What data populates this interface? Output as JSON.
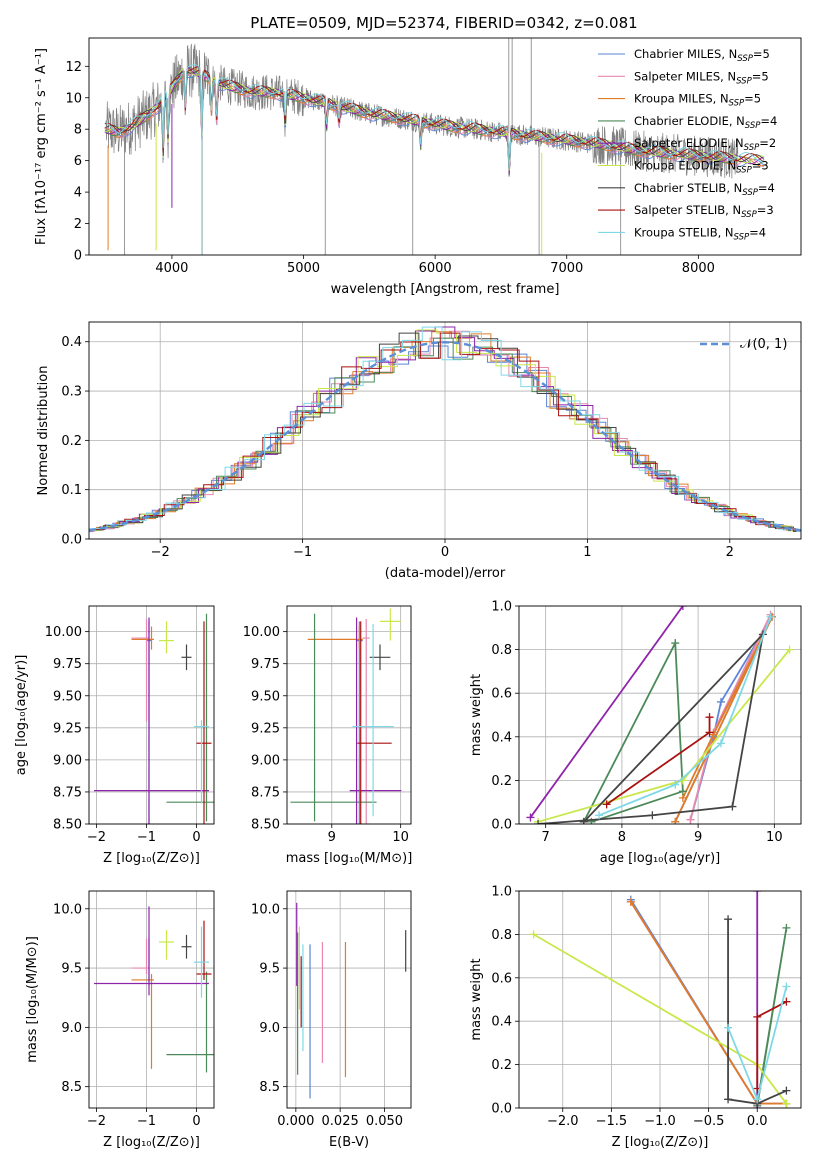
{
  "figure_title": "PLATE=0509, MJD=52374, FIBERID=0342, z=0.081",
  "colors": {
    "Chabrier MILES": "#5b85d6",
    "Salpeter MILES": "#e888b0",
    "Kroupa MILES": "#e07b28",
    "Chabrier ELODIE": "#4d8a5a",
    "Salpeter ELODIE": "#8e24aa",
    "Kroupa ELODIE": "#c8e84a",
    "Chabrier STELIB": "#444444",
    "Salpeter STELIB": "#aa1111",
    "Kroupa STELIB": "#7fd8e6",
    "data": "#808080"
  },
  "chart_data": [
    {
      "id": "spectrum",
      "type": "line",
      "xlabel": "wavelength [Angstrom, rest frame]",
      "ylabel": "Flux [fλ10⁻¹⁷ erg cm⁻² s⁻¹ A⁻¹]",
      "xlim": [
        3370,
        8780
      ],
      "ylim": [
        0,
        13.8
      ],
      "xticks": [
        4000,
        5000,
        6000,
        7000,
        8000
      ],
      "yticks": [
        0,
        2,
        4,
        6,
        8,
        10,
        12
      ],
      "grid": false,
      "legend_position": "top-right",
      "legend": [
        {
          "label": "Chabrier MILES, N",
          "sub": "SSP",
          "tail": "=5"
        },
        {
          "label": "Salpeter MILES, N",
          "sub": "SSP",
          "tail": "=5"
        },
        {
          "label": "Kroupa MILES, N",
          "sub": "SSP",
          "tail": "=5"
        },
        {
          "label": "Chabrier ELODIE, N",
          "sub": "SSP",
          "tail": "=4"
        },
        {
          "label": "Salpeter ELODIE, N",
          "sub": "SSP",
          "tail": "=2"
        },
        {
          "label": "Kroupa ELODIE, N",
          "sub": "SSP",
          "tail": "=3"
        },
        {
          "label": "Chabrier STELIB, N",
          "sub": "SSP",
          "tail": "=4"
        },
        {
          "label": "Salpeter STELIB, N",
          "sub": "SSP",
          "tail": "=3"
        },
        {
          "label": "Kroupa STELIB, N",
          "sub": "SSP",
          "tail": "=4"
        }
      ],
      "continuum": {
        "x": [
          3500,
          3600,
          3700,
          3800,
          3900,
          4000,
          4100,
          4200,
          4300,
          4400,
          4600,
          4800,
          5000,
          5200,
          5500,
          5800,
          6100,
          6400,
          6700,
          7000,
          7300,
          7500,
          7700,
          8000,
          8300,
          8500
        ],
        "y": [
          8.0,
          7.8,
          8.2,
          8.8,
          9.5,
          10.6,
          11.8,
          11.6,
          11.2,
          10.8,
          10.4,
          10.3,
          10.0,
          9.6,
          9.0,
          8.6,
          8.2,
          7.9,
          7.6,
          7.3,
          7.0,
          6.7,
          6.5,
          6.3,
          6.1,
          6.0
        ]
      },
      "model_range": [
        3490,
        8500
      ],
      "data_range": [
        3500,
        8300
      ]
    },
    {
      "id": "residual_hist",
      "type": "histogram",
      "xlabel": "(data-model)/error",
      "ylabel": "Normed distribution",
      "xlim": [
        -2.5,
        2.5
      ],
      "ylim": [
        0,
        0.44
      ],
      "xticks": [
        -2,
        -1,
        0,
        1,
        2
      ],
      "yticks": [
        0.0,
        0.1,
        0.2,
        0.3,
        0.4
      ],
      "grid": true,
      "reference": {
        "label": "𝒩(0, 1)",
        "mean": 0,
        "sigma": 1
      },
      "bins": 39
    },
    {
      "id": "age_vs_Z",
      "type": "errorbar",
      "xlabel": "Z [log₁₀(Z/Z⊙)]",
      "ylabel": "age  [log₁₀(age/yr)]",
      "xlim": [
        -2.15,
        0.35
      ],
      "ylim": [
        8.5,
        10.2
      ],
      "xticks": [
        -2,
        -1,
        0
      ],
      "yticks": [
        8.5,
        8.75,
        9.0,
        9.25,
        9.5,
        9.75,
        10.0
      ],
      "points": [
        {
          "model": "Chabrier MILES",
          "x": -0.95,
          "xerr": [
            0.05,
            0.05
          ],
          "y": 9.93,
          "yerr": [
            1.43,
            0.15
          ]
        },
        {
          "model": "Salpeter MILES",
          "x": -1.0,
          "xerr": [
            0.3,
            0.05
          ],
          "y": 9.95,
          "yerr": [
            0.65,
            0.15
          ]
        },
        {
          "model": "Kroupa MILES",
          "x": -0.9,
          "xerr": [
            0.4,
            0.05
          ],
          "y": 9.94,
          "yerr": [
            0.08,
            0.1
          ]
        },
        {
          "model": "Chabrier ELODIE",
          "x": 0.2,
          "xerr": [
            0.8,
            0.15
          ],
          "y": 8.67,
          "yerr": [
            0.15,
            1.47
          ]
        },
        {
          "model": "Salpeter ELODIE",
          "x": -0.95,
          "xerr": [
            1.1,
            1.2
          ],
          "y": 8.76,
          "yerr": [
            0.3,
            1.35
          ]
        },
        {
          "model": "Kroupa ELODIE",
          "x": -0.6,
          "xerr": [
            0.15,
            0.15
          ],
          "y": 9.93,
          "yerr": [
            0.1,
            0.15
          ]
        },
        {
          "model": "Chabrier STELIB",
          "x": -0.2,
          "xerr": [
            0.1,
            0.1
          ],
          "y": 9.8,
          "yerr": [
            0.1,
            0.1
          ]
        },
        {
          "model": "Salpeter STELIB",
          "x": 0.15,
          "xerr": [
            0.15,
            0.15
          ],
          "y": 9.13,
          "yerr": [
            0.7,
            0.95
          ]
        },
        {
          "model": "Kroupa STELIB",
          "x": 0.1,
          "xerr": [
            0.15,
            0.15
          ],
          "y": 9.26,
          "yerr": [
            0.6,
            0.05
          ]
        }
      ]
    },
    {
      "id": "age_vs_mass",
      "type": "errorbar",
      "xlabel": "mass [log₁₀(M/M⊙)]",
      "ylabel": "",
      "xlim": [
        8.35,
        10.15
      ],
      "ylim": [
        8.5,
        10.2
      ],
      "xticks": [
        9,
        10
      ],
      "yticks": [
        8.5,
        8.75,
        9.0,
        9.25,
        9.5,
        9.75,
        10.0
      ],
      "points": [
        {
          "model": "Chabrier MILES",
          "x": 9.4,
          "xerr": [
            0.05,
            0.05
          ],
          "y": 9.93,
          "yerr": [
            1.43,
            0.15
          ]
        },
        {
          "model": "Salpeter MILES",
          "x": 9.5,
          "xerr": [
            0.05,
            0.05
          ],
          "y": 9.95,
          "yerr": [
            1.45,
            0.15
          ]
        },
        {
          "model": "Kroupa MILES",
          "x": 9.4,
          "xerr": [
            0.75,
            0.05
          ],
          "y": 9.94,
          "yerr": [
            0.08,
            0.1
          ]
        },
        {
          "model": "Chabrier ELODIE",
          "x": 8.75,
          "xerr": [
            0.35,
            0.9
          ],
          "y": 8.67,
          "yerr": [
            0.15,
            1.47
          ]
        },
        {
          "model": "Salpeter ELODIE",
          "x": 9.36,
          "xerr": [
            0.1,
            0.65
          ],
          "y": 8.76,
          "yerr": [
            0.3,
            1.35
          ]
        },
        {
          "model": "Kroupa ELODIE",
          "x": 9.85,
          "xerr": [
            0.15,
            0.15
          ],
          "y": 10.08,
          "yerr": [
            0.15,
            0.1
          ]
        },
        {
          "model": "Chabrier STELIB",
          "x": 9.7,
          "xerr": [
            0.15,
            0.15
          ],
          "y": 9.8,
          "yerr": [
            0.1,
            0.1
          ]
        },
        {
          "model": "Salpeter STELIB",
          "x": 9.42,
          "xerr": [
            0.05,
            0.45
          ],
          "y": 9.13,
          "yerr": [
            0.7,
            0.95
          ]
        },
        {
          "model": "Kroupa STELIB",
          "x": 9.6,
          "xerr": [
            0.3,
            0.3
          ],
          "y": 9.26,
          "yerr": [
            0.7,
            0.8
          ]
        }
      ]
    },
    {
      "id": "weight_vs_age",
      "type": "line",
      "xlabel": "age  [log₁₀(age/yr)]",
      "ylabel": "mass weight",
      "xlim": [
        6.65,
        10.35
      ],
      "ylim": [
        0,
        1.0
      ],
      "xticks": [
        7,
        8,
        9,
        10
      ],
      "yticks": [
        0.0,
        0.2,
        0.4,
        0.6,
        0.8,
        1.0
      ],
      "grid": true,
      "series": [
        {
          "model": "Chabrier MILES",
          "x": [
            8.9,
            9.2,
            9.3,
            9.97,
            8.7
          ],
          "y": [
            0.02,
            0.4,
            0.56,
            0.95,
            0.01
          ]
        },
        {
          "model": "Salpeter MILES",
          "x": [
            8.9,
            9.2,
            9.95
          ],
          "y": [
            0.02,
            0.42,
            0.96
          ]
        },
        {
          "model": "Kroupa MILES",
          "x": [
            8.8,
            9.2,
            9.97,
            8.7
          ],
          "y": [
            0.12,
            0.41,
            0.95,
            0.01
          ]
        },
        {
          "model": "Chabrier ELODIE",
          "x": [
            7.5,
            8.7,
            8.8,
            7.6
          ],
          "y": [
            0.01,
            0.83,
            0.15,
            0.01
          ]
        },
        {
          "model": "Salpeter ELODIE",
          "x": [
            6.8,
            8.8
          ],
          "y": [
            0.03,
            1.0
          ]
        },
        {
          "model": "Kroupa ELODIE",
          "x": [
            6.9,
            8.8,
            10.2
          ],
          "y": [
            0.01,
            0.2,
            0.8
          ]
        },
        {
          "model": "Chabrier STELIB",
          "x": [
            6.9,
            8.4,
            9.45,
            9.85,
            7.5
          ],
          "y": [
            0.0,
            0.04,
            0.08,
            0.87,
            0.01
          ]
        },
        {
          "model": "Salpeter STELIB",
          "x": [
            7.8,
            9.15,
            9.15
          ],
          "y": [
            0.09,
            0.42,
            0.49
          ]
        },
        {
          "model": "Kroupa STELIB",
          "x": [
            7.7,
            8.7,
            9.3,
            9.95
          ],
          "y": [
            0.04,
            0.18,
            0.37,
            0.95
          ]
        }
      ]
    },
    {
      "id": "mass_vs_Z",
      "type": "errorbar",
      "xlabel": "Z [log₁₀(Z/Z⊙)]",
      "ylabel": "mass [log₁₀(M/M⊙)]",
      "xlim": [
        -2.15,
        0.35
      ],
      "ylim": [
        8.32,
        10.15
      ],
      "xticks": [
        -2,
        -1,
        0
      ],
      "yticks": [
        8.5,
        9.0,
        9.5,
        10.0
      ],
      "points": [
        {
          "model": "Chabrier MILES",
          "x": -0.95,
          "xerr": [
            0.05,
            0.05
          ],
          "y": 9.4,
          "yerr": [
            0.05,
            0.35
          ]
        },
        {
          "model": "Salpeter MILES",
          "x": -1.0,
          "xerr": [
            0.3,
            0.05
          ],
          "y": 9.5,
          "yerr": [
            0.05,
            0.25
          ]
        },
        {
          "model": "Kroupa MILES",
          "x": -0.9,
          "xerr": [
            0.4,
            0.05
          ],
          "y": 9.4,
          "yerr": [
            0.75,
            0.05
          ]
        },
        {
          "model": "Chabrier ELODIE",
          "x": 0.2,
          "xerr": [
            0.8,
            0.15
          ],
          "y": 8.77,
          "yerr": [
            0.15,
            0.7
          ]
        },
        {
          "model": "Salpeter ELODIE",
          "x": -0.95,
          "xerr": [
            1.1,
            1.2
          ],
          "y": 9.37,
          "yerr": [
            0.1,
            0.65
          ]
        },
        {
          "model": "Kroupa ELODIE",
          "x": -0.6,
          "xerr": [
            0.15,
            0.15
          ],
          "y": 9.72,
          "yerr": [
            0.15,
            0.1
          ]
        },
        {
          "model": "Chabrier STELIB",
          "x": -0.2,
          "xerr": [
            0.1,
            0.1
          ],
          "y": 9.68,
          "yerr": [
            0.1,
            0.1
          ]
        },
        {
          "model": "Salpeter STELIB",
          "x": 0.15,
          "xerr": [
            0.15,
            0.15
          ],
          "y": 9.45,
          "yerr": [
            0.05,
            0.45
          ]
        },
        {
          "model": "Kroupa STELIB",
          "x": 0.1,
          "xerr": [
            0.15,
            0.15
          ],
          "y": 9.55,
          "yerr": [
            0.3,
            0.3
          ]
        }
      ]
    },
    {
      "id": "mass_vs_ebv",
      "type": "errorbar",
      "xlabel": "E(B-V)",
      "ylabel": "",
      "xlim": [
        -0.005,
        0.065
      ],
      "ylim": [
        8.32,
        10.15
      ],
      "xticks": [
        0.0,
        0.025,
        0.05
      ],
      "yticks": [
        8.5,
        9.0,
        9.5,
        10.0
      ],
      "points": [
        {
          "model": "Chabrier MILES",
          "x": 0.008,
          "xerr": [
            0,
            0
          ],
          "y": 9.3,
          "yerr": [
            0.9,
            0.4
          ]
        },
        {
          "model": "Salpeter MILES",
          "x": 0.015,
          "xerr": [
            0,
            0
          ],
          "y": 9.3,
          "yerr": [
            0.6,
            0.42
          ]
        },
        {
          "model": "Kroupa MILES",
          "x": 0.028,
          "xerr": [
            0,
            0
          ],
          "y": 9.3,
          "yerr": [
            0.72,
            0.42
          ]
        },
        {
          "model": "Chabrier ELODIE",
          "x": 0.001,
          "xerr": [
            0,
            0
          ],
          "y": 9.2,
          "yerr": [
            0.6,
            0.6
          ]
        },
        {
          "model": "Salpeter ELODIE",
          "x": 0.0005,
          "xerr": [
            0,
            0
          ],
          "y": 9.6,
          "yerr": [
            0.25,
            0.45
          ]
        },
        {
          "model": "Kroupa ELODIE",
          "x": 0.002,
          "xerr": [
            0,
            0
          ],
          "y": 9.5,
          "yerr": [
            0.35,
            0.35
          ]
        },
        {
          "model": "Chabrier STELIB",
          "x": 0.062,
          "xerr": [
            0,
            0
          ],
          "y": 9.65,
          "yerr": [
            0.18,
            0.17
          ]
        },
        {
          "model": "Salpeter STELIB",
          "x": 0.003,
          "xerr": [
            0,
            0
          ],
          "y": 9.3,
          "yerr": [
            0.3,
            0.3
          ]
        },
        {
          "model": "Kroupa STELIB",
          "x": 0.004,
          "xerr": [
            0,
            0
          ],
          "y": 9.3,
          "yerr": [
            0.5,
            0.4
          ]
        }
      ]
    },
    {
      "id": "weight_vs_Z",
      "type": "line",
      "xlabel": "Z [log₁₀(Z/Z⊙)]",
      "ylabel": "mass weight",
      "xlim": [
        -2.45,
        0.45
      ],
      "ylim": [
        0,
        1.0
      ],
      "xticks": [
        -2.0,
        -1.5,
        -1.0,
        -0.5,
        0.0
      ],
      "yticks": [
        0.0,
        0.2,
        0.4,
        0.6,
        0.8,
        1.0
      ],
      "grid": true,
      "series": [
        {
          "model": "Chabrier MILES",
          "x": [
            -1.3,
            0.0,
            0.3
          ],
          "y": [
            0.96,
            0.02,
            0.02
          ]
        },
        {
          "model": "Salpeter MILES",
          "x": [
            -1.3,
            0.0,
            0.3
          ],
          "y": [
            0.95,
            0.02,
            0.02
          ]
        },
        {
          "model": "Kroupa MILES",
          "x": [
            -1.3,
            0.0,
            0.3
          ],
          "y": [
            0.95,
            0.02,
            0.02
          ]
        },
        {
          "model": "Chabrier ELODIE",
          "x": [
            0.0,
            0.3,
            0.0
          ],
          "y": [
            0.01,
            0.83,
            0.02
          ]
        },
        {
          "model": "Salpeter ELODIE",
          "x": [
            0.0,
            0.0
          ],
          "y": [
            0.0,
            1.0
          ]
        },
        {
          "model": "Kroupa ELODIE",
          "x": [
            -2.3,
            0.0,
            0.3
          ],
          "y": [
            0.8,
            0.2,
            0.02
          ]
        },
        {
          "model": "Chabrier STELIB",
          "x": [
            -0.3,
            -0.3,
            0.0,
            0.3
          ],
          "y": [
            0.87,
            0.04,
            0.02,
            0.08
          ]
        },
        {
          "model": "Salpeter STELIB",
          "x": [
            0.0,
            0.0,
            0.3
          ],
          "y": [
            0.09,
            0.42,
            0.49
          ]
        },
        {
          "model": "Kroupa STELIB",
          "x": [
            -0.3,
            0.0,
            0.3
          ],
          "y": [
            0.37,
            0.04,
            0.56
          ]
        }
      ]
    }
  ]
}
